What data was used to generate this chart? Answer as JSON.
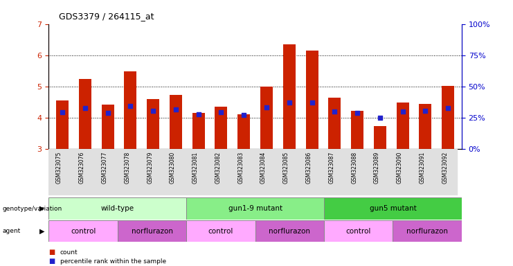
{
  "title": "GDS3379 / 264115_at",
  "samples": [
    "GSM323075",
    "GSM323076",
    "GSM323077",
    "GSM323078",
    "GSM323079",
    "GSM323080",
    "GSM323081",
    "GSM323082",
    "GSM323083",
    "GSM323084",
    "GSM323085",
    "GSM323086",
    "GSM323087",
    "GSM323088",
    "GSM323089",
    "GSM323090",
    "GSM323091",
    "GSM323092"
  ],
  "bar_values": [
    4.55,
    5.25,
    4.42,
    5.48,
    4.6,
    4.73,
    4.15,
    4.35,
    4.1,
    5.0,
    6.35,
    6.15,
    4.65,
    4.22,
    3.73,
    4.48,
    4.45,
    5.02
  ],
  "blue_dot_values": [
    4.18,
    4.3,
    4.15,
    4.37,
    4.22,
    4.27,
    4.12,
    4.18,
    4.08,
    4.32,
    4.48,
    4.48,
    4.2,
    4.15,
    4.0,
    4.2,
    4.22,
    4.3
  ],
  "ylim_left": [
    3,
    7
  ],
  "ylim_right": [
    0,
    100
  ],
  "yticks_left": [
    3,
    4,
    5,
    6,
    7
  ],
  "yticks_right": [
    0,
    25,
    50,
    75,
    100
  ],
  "bar_color": "#cc2200",
  "dot_color": "#2222cc",
  "bar_width": 0.55,
  "genotype_groups": [
    {
      "label": "wild-type",
      "start": 0,
      "end": 6,
      "color": "#ccffcc"
    },
    {
      "label": "gun1-9 mutant",
      "start": 6,
      "end": 12,
      "color": "#88ee88"
    },
    {
      "label": "gun5 mutant",
      "start": 12,
      "end": 18,
      "color": "#44cc44"
    }
  ],
  "agent_groups": [
    {
      "label": "control",
      "start": 0,
      "end": 3,
      "color": "#ffaaff"
    },
    {
      "label": "norflurazon",
      "start": 3,
      "end": 6,
      "color": "#cc66cc"
    },
    {
      "label": "control",
      "start": 6,
      "end": 9,
      "color": "#ffaaff"
    },
    {
      "label": "norflurazon",
      "start": 9,
      "end": 12,
      "color": "#cc66cc"
    },
    {
      "label": "control",
      "start": 12,
      "end": 15,
      "color": "#ffaaff"
    },
    {
      "label": "norflurazon",
      "start": 15,
      "end": 18,
      "color": "#cc66cc"
    }
  ],
  "legend_count_color": "#cc2200",
  "legend_dot_color": "#2222cc",
  "background_color": "#ffffff",
  "left_tick_color": "#cc2200",
  "right_tick_color": "#0000cc",
  "grid_yticks": [
    4,
    5,
    6
  ]
}
